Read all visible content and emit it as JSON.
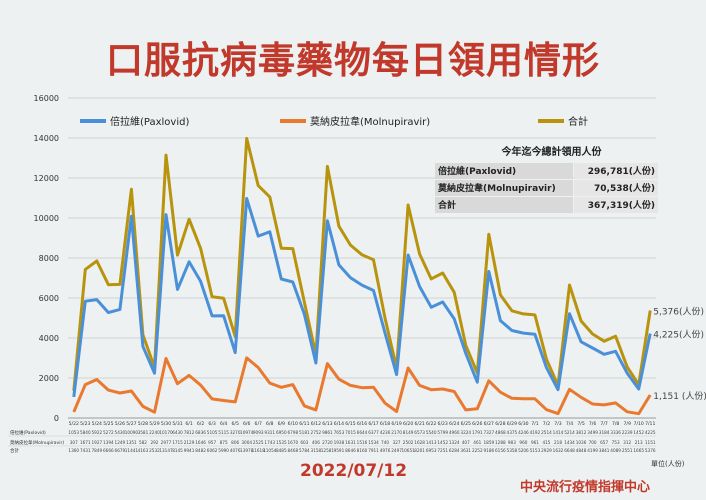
{
  "title": "口服抗病毒藥物每日領用情形",
  "date": "2022/07/12",
  "source": "中央流行疫情指揮中心",
  "unit_label": "單位(人份)",
  "colors": {
    "paxlovid": "#4a90d9",
    "molnupiravir": "#e8792f",
    "total": "#b8930e",
    "title": "#c0392b"
  },
  "summary_table": {
    "header": "今年迄今總計領用人份",
    "rows": [
      {
        "label": "倍拉維(Paxlovid)",
        "value": "296,781(人份)"
      },
      {
        "label": "莫納皮拉韋(Molnupiravir)",
        "value": "70,538(人份)"
      },
      {
        "label": "合計",
        "value": "367,319(人份)"
      }
    ]
  },
  "end_labels": {
    "total": "5,376(人份)",
    "paxlovid": "4,225(人份)",
    "molnupiravir": "1,151 (人份)"
  },
  "row_labels": [
    "倍拉維(Paxlovid)",
    "莫納皮拉韋(Molnupiravir)",
    "合計"
  ],
  "chart_data": {
    "type": "line",
    "ylim": [
      0,
      16000
    ],
    "yticks": [
      0,
      2000,
      4000,
      6000,
      8000,
      10000,
      12000,
      14000,
      16000
    ],
    "legend": "top",
    "grid": true,
    "x": [
      "5/22",
      "5/23",
      "5/24",
      "5/25",
      "5/26",
      "5/27",
      "5/28",
      "5/29",
      "5/30",
      "5/31",
      "6/1",
      "6/2",
      "6/3",
      "6/4",
      "6/5",
      "6/6",
      "6/7",
      "6/8",
      "6/9",
      "6/10",
      "6/11",
      "6/12",
      "6/13",
      "6/14",
      "6/15",
      "6/16",
      "6/17",
      "6/18",
      "6/19",
      "6/20",
      "6/21",
      "6/22",
      "6/23",
      "6/24",
      "6/25",
      "6/26",
      "6/27",
      "6/28",
      "6/29",
      "6/30",
      "7/1",
      "7/2",
      "7/3",
      "7/4",
      "7/5",
      "7/6",
      "7/7",
      "7/8",
      "7/9",
      "7/10",
      "7/11"
    ],
    "series": [
      {
        "name": "倍拉維(Paxlovid)",
        "values": [
          1053,
          5840,
          5922,
          5272,
          5430,
          10090,
          3581,
          2240,
          10170,
          6430,
          7812,
          6836,
          5105,
          5115,
          3270,
          10974,
          9093,
          9311,
          6950,
          6798,
          5181,
          2752,
          9861,
          7653,
          7015,
          6644,
          6377,
          4236,
          2170,
          8149,
          6573,
          5540,
          5799,
          4960,
          3224,
          1791,
          7327,
          4868,
          4375,
          4246,
          4192,
          2514,
          1414,
          5214,
          3812,
          3499,
          3184,
          3336,
          2239,
          1452,
          4225
        ]
      },
      {
        "name": "莫納皮拉韋(Molnupiravir)",
        "values": [
          307,
          1671,
          1927,
          1394,
          1249,
          1351,
          582,
          292,
          2977,
          1715,
          2129,
          1646,
          957,
          875,
          806,
          3004,
          2525,
          1743,
          1535,
          1670,
          603,
          406,
          2720,
          1938,
          1631,
          1516,
          1534,
          740,
          327,
          2502,
          1628,
          1413,
          1452,
          1324,
          407,
          461,
          1859,
          1288,
          983,
          960,
          961,
          415,
          218,
          1434,
          1036,
          700,
          657,
          753,
          312,
          213,
          1151
        ]
      },
      {
        "name": "合計",
        "values": [
          1360,
          7431,
          7849,
          6666,
          6679,
          11441,
          4163,
          2532,
          13147,
          8145,
          9941,
          8482,
          6062,
          5990,
          4076,
          13978,
          11618,
          11054,
          8485,
          8468,
          5784,
          3158,
          12581,
          9591,
          8646,
          8160,
          7911,
          4976,
          2497,
          10651,
          8201,
          6953,
          7251,
          6284,
          3631,
          2252,
          9186,
          6156,
          5358,
          5206,
          5153,
          2929,
          1632,
          6648,
          4848,
          4199,
          3841,
          4089,
          2551,
          1665,
          5376
        ]
      }
    ]
  }
}
